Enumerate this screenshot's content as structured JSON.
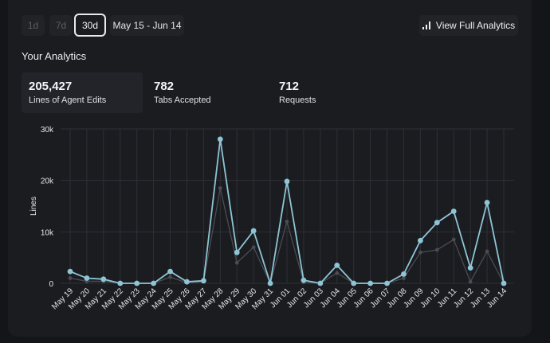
{
  "range_options": [
    {
      "label": "1d",
      "active": false
    },
    {
      "label": "7d",
      "active": false
    },
    {
      "label": "30d",
      "active": true
    }
  ],
  "date_range": "May 15 - Jun 14",
  "view_full_analytics": {
    "label": "View Full Analytics",
    "icon": "bar-chart-icon"
  },
  "section_title": "Your Analytics",
  "stats": [
    {
      "value": "205,427",
      "label": "Lines of Agent Edits",
      "selected": true
    },
    {
      "value": "782",
      "label": "Tabs Accepted",
      "selected": false
    },
    {
      "value": "712",
      "label": "Requests",
      "selected": false
    }
  ],
  "colors": {
    "primary_series": "#8ec5d6",
    "secondary_series": "#4a4c52",
    "grid": "#2e3036"
  },
  "chart_data": {
    "type": "line",
    "title": "",
    "xlabel": "",
    "ylabel": "Lines",
    "ylim": [
      0,
      30000
    ],
    "y_ticks": [
      0,
      10000,
      20000,
      30000
    ],
    "y_tick_labels": [
      "0",
      "10k",
      "20k",
      "30k"
    ],
    "grid": true,
    "x": [
      "May 19",
      "May 20",
      "May 21",
      "May 22",
      "May 23",
      "May 24",
      "May 25",
      "May 26",
      "May 27",
      "May 28",
      "May 29",
      "May 30",
      "May 31",
      "Jun 01",
      "Jun 02",
      "Jun 03",
      "Jun 04",
      "Jun 05",
      "Jun 06",
      "Jun 07",
      "Jun 08",
      "Jun 09",
      "Jun 10",
      "Jun 11",
      "Jun 12",
      "Jun 13",
      "Jun 14"
    ],
    "series": [
      {
        "name": "primary",
        "values": [
          2300,
          1000,
          800,
          0,
          0,
          0,
          2300,
          300,
          500,
          28000,
          6000,
          10200,
          0,
          19800,
          600,
          0,
          3500,
          0,
          0,
          0,
          1800,
          8300,
          11800,
          14000,
          3000,
          15700,
          0
        ]
      },
      {
        "name": "secondary",
        "values": [
          1000,
          400,
          400,
          0,
          0,
          0,
          1200,
          100,
          300,
          18500,
          4000,
          7000,
          0,
          12000,
          200,
          0,
          2000,
          0,
          0,
          0,
          1000,
          6000,
          6500,
          8500,
          300,
          6200,
          0
        ]
      }
    ]
  }
}
